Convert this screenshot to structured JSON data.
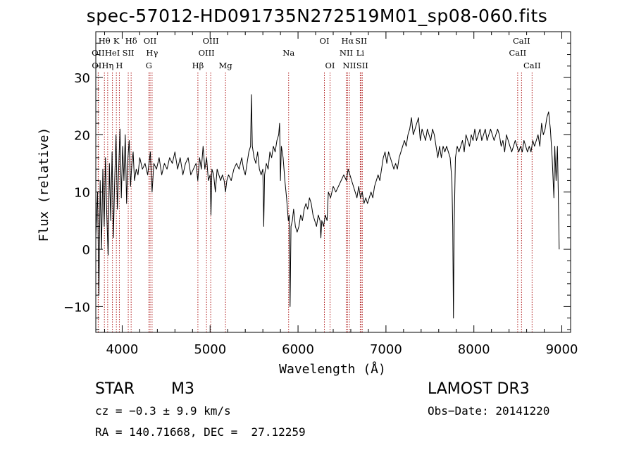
{
  "chart_data": {
    "type": "line",
    "title": "spec-57012-HD091735N272519M01_sp08-060.fits",
    "xlabel": "Wavelength (Å)",
    "ylabel": "Flux (relative)",
    "xlim": [
      3700,
      9100
    ],
    "ylim": [
      -14.5,
      38
    ],
    "x_ticks": [
      4000,
      5000,
      6000,
      7000,
      8000,
      9000
    ],
    "y_ticks": [
      -10,
      0,
      10,
      20,
      30
    ],
    "line_color": "#000000",
    "marker_color": "#b22222",
    "series": [
      {
        "name": "flux",
        "points": [
          [
            3700,
            2
          ],
          [
            3720,
            10
          ],
          [
            3735,
            -8
          ],
          [
            3750,
            12
          ],
          [
            3765,
            0
          ],
          [
            3780,
            14
          ],
          [
            3795,
            4
          ],
          [
            3810,
            16
          ],
          [
            3825,
            6
          ],
          [
            3840,
            -1
          ],
          [
            3855,
            15
          ],
          [
            3870,
            5
          ],
          [
            3885,
            17
          ],
          [
            3900,
            2
          ],
          [
            3915,
            12
          ],
          [
            3930,
            20
          ],
          [
            3945,
            7
          ],
          [
            3960,
            14
          ],
          [
            3975,
            21
          ],
          [
            3990,
            9
          ],
          [
            4005,
            18
          ],
          [
            4020,
            12
          ],
          [
            4035,
            20
          ],
          [
            4050,
            8
          ],
          [
            4065,
            16
          ],
          [
            4080,
            19
          ],
          [
            4095,
            11
          ],
          [
            4110,
            15
          ],
          [
            4125,
            17
          ],
          [
            4140,
            12
          ],
          [
            4160,
            14
          ],
          [
            4180,
            13
          ],
          [
            4200,
            16
          ],
          [
            4230,
            14
          ],
          [
            4260,
            15
          ],
          [
            4290,
            13
          ],
          [
            4320,
            17
          ],
          [
            4340,
            10
          ],
          [
            4360,
            15
          ],
          [
            4390,
            14
          ],
          [
            4420,
            16
          ],
          [
            4450,
            13
          ],
          [
            4480,
            15
          ],
          [
            4510,
            14
          ],
          [
            4540,
            16
          ],
          [
            4570,
            15
          ],
          [
            4600,
            17
          ],
          [
            4630,
            14
          ],
          [
            4660,
            16
          ],
          [
            4690,
            13
          ],
          [
            4720,
            15
          ],
          [
            4750,
            16
          ],
          [
            4780,
            13
          ],
          [
            4810,
            14
          ],
          [
            4840,
            15
          ],
          [
            4860,
            12
          ],
          [
            4880,
            16
          ],
          [
            4900,
            14
          ],
          [
            4920,
            18
          ],
          [
            4940,
            14
          ],
          [
            4960,
            16
          ],
          [
            4980,
            12
          ],
          [
            5000,
            13
          ],
          [
            5010,
            6
          ],
          [
            5020,
            14
          ],
          [
            5040,
            13
          ],
          [
            5060,
            10
          ],
          [
            5080,
            14
          ],
          [
            5100,
            13
          ],
          [
            5120,
            12
          ],
          [
            5140,
            13
          ],
          [
            5160,
            12
          ],
          [
            5175,
            10
          ],
          [
            5190,
            12
          ],
          [
            5210,
            13
          ],
          [
            5240,
            12
          ],
          [
            5270,
            14
          ],
          [
            5300,
            15
          ],
          [
            5330,
            14
          ],
          [
            5360,
            16
          ],
          [
            5380,
            14
          ],
          [
            5400,
            13
          ],
          [
            5420,
            15
          ],
          [
            5440,
            17
          ],
          [
            5460,
            18
          ],
          [
            5470,
            27
          ],
          [
            5480,
            18
          ],
          [
            5500,
            16
          ],
          [
            5520,
            15
          ],
          [
            5540,
            17
          ],
          [
            5560,
            14
          ],
          [
            5580,
            13
          ],
          [
            5600,
            14
          ],
          [
            5610,
            4
          ],
          [
            5620,
            13
          ],
          [
            5640,
            15
          ],
          [
            5660,
            14
          ],
          [
            5680,
            17
          ],
          [
            5700,
            16
          ],
          [
            5720,
            18
          ],
          [
            5740,
            17
          ],
          [
            5760,
            19
          ],
          [
            5780,
            20
          ],
          [
            5790,
            22
          ],
          [
            5800,
            12
          ],
          [
            5810,
            18
          ],
          [
            5830,
            16
          ],
          [
            5850,
            12
          ],
          [
            5870,
            9
          ],
          [
            5890,
            5
          ],
          [
            5900,
            6
          ],
          [
            5910,
            -10
          ],
          [
            5920,
            4
          ],
          [
            5935,
            5
          ],
          [
            5950,
            7
          ],
          [
            5970,
            4
          ],
          [
            5990,
            3
          ],
          [
            6010,
            4
          ],
          [
            6030,
            6
          ],
          [
            6050,
            5
          ],
          [
            6070,
            7
          ],
          [
            6090,
            8
          ],
          [
            6110,
            7
          ],
          [
            6130,
            9
          ],
          [
            6150,
            8
          ],
          [
            6170,
            6
          ],
          [
            6190,
            5
          ],
          [
            6210,
            4
          ],
          [
            6230,
            6
          ],
          [
            6250,
            5
          ],
          [
            6260,
            2
          ],
          [
            6270,
            5
          ],
          [
            6290,
            4
          ],
          [
            6310,
            6
          ],
          [
            6330,
            5
          ],
          [
            6345,
            10
          ],
          [
            6370,
            9
          ],
          [
            6400,
            11
          ],
          [
            6430,
            10
          ],
          [
            6460,
            11
          ],
          [
            6490,
            12
          ],
          [
            6520,
            13
          ],
          [
            6550,
            12
          ],
          [
            6570,
            14
          ],
          [
            6590,
            13
          ],
          [
            6610,
            12
          ],
          [
            6630,
            11
          ],
          [
            6650,
            10
          ],
          [
            6670,
            9
          ],
          [
            6690,
            11
          ],
          [
            6710,
            9
          ],
          [
            6730,
            10
          ],
          [
            6750,
            8
          ],
          [
            6770,
            9
          ],
          [
            6790,
            8
          ],
          [
            6810,
            9
          ],
          [
            6830,
            10
          ],
          [
            6850,
            9
          ],
          [
            6870,
            11
          ],
          [
            6890,
            12
          ],
          [
            6910,
            13
          ],
          [
            6930,
            12
          ],
          [
            6950,
            14
          ],
          [
            6970,
            16
          ],
          [
            6990,
            17
          ],
          [
            7010,
            15
          ],
          [
            7030,
            17
          ],
          [
            7050,
            16
          ],
          [
            7070,
            15
          ],
          [
            7090,
            14
          ],
          [
            7110,
            15
          ],
          [
            7130,
            14
          ],
          [
            7150,
            16
          ],
          [
            7170,
            17
          ],
          [
            7190,
            18
          ],
          [
            7210,
            19
          ],
          [
            7230,
            18
          ],
          [
            7250,
            20
          ],
          [
            7270,
            21
          ],
          [
            7290,
            23
          ],
          [
            7310,
            20
          ],
          [
            7330,
            21
          ],
          [
            7350,
            22
          ],
          [
            7370,
            23
          ],
          [
            7390,
            19
          ],
          [
            7410,
            21
          ],
          [
            7430,
            20
          ],
          [
            7450,
            19
          ],
          [
            7470,
            21
          ],
          [
            7490,
            20
          ],
          [
            7510,
            19
          ],
          [
            7530,
            21
          ],
          [
            7550,
            20
          ],
          [
            7570,
            18
          ],
          [
            7590,
            16
          ],
          [
            7610,
            18
          ],
          [
            7630,
            16
          ],
          [
            7650,
            18
          ],
          [
            7670,
            17
          ],
          [
            7690,
            18
          ],
          [
            7710,
            17
          ],
          [
            7730,
            16
          ],
          [
            7750,
            12
          ],
          [
            7760,
            4
          ],
          [
            7768,
            -12
          ],
          [
            7776,
            4
          ],
          [
            7790,
            16
          ],
          [
            7810,
            18
          ],
          [
            7830,
            17
          ],
          [
            7850,
            18
          ],
          [
            7870,
            19
          ],
          [
            7890,
            17
          ],
          [
            7910,
            20
          ],
          [
            7930,
            19
          ],
          [
            7950,
            18
          ],
          [
            7970,
            20
          ],
          [
            7990,
            19
          ],
          [
            8010,
            21
          ],
          [
            8030,
            19
          ],
          [
            8050,
            20
          ],
          [
            8070,
            21
          ],
          [
            8090,
            19
          ],
          [
            8110,
            20
          ],
          [
            8130,
            21
          ],
          [
            8150,
            19
          ],
          [
            8170,
            20
          ],
          [
            8190,
            21
          ],
          [
            8210,
            20
          ],
          [
            8230,
            19
          ],
          [
            8250,
            20
          ],
          [
            8270,
            21
          ],
          [
            8290,
            20
          ],
          [
            8310,
            18
          ],
          [
            8330,
            19
          ],
          [
            8350,
            17
          ],
          [
            8370,
            20
          ],
          [
            8390,
            19
          ],
          [
            8410,
            18
          ],
          [
            8430,
            17
          ],
          [
            8450,
            18
          ],
          [
            8470,
            19
          ],
          [
            8490,
            18
          ],
          [
            8510,
            17
          ],
          [
            8530,
            18
          ],
          [
            8550,
            17
          ],
          [
            8570,
            19
          ],
          [
            8590,
            18
          ],
          [
            8610,
            17
          ],
          [
            8630,
            18
          ],
          [
            8650,
            17
          ],
          [
            8670,
            19
          ],
          [
            8690,
            18
          ],
          [
            8710,
            19
          ],
          [
            8730,
            20
          ],
          [
            8750,
            18
          ],
          [
            8770,
            22
          ],
          [
            8790,
            20
          ],
          [
            8810,
            21
          ],
          [
            8830,
            23
          ],
          [
            8850,
            24
          ],
          [
            8870,
            21
          ],
          [
            8890,
            16
          ],
          [
            8910,
            9
          ],
          [
            8920,
            18
          ],
          [
            8935,
            12
          ],
          [
            8950,
            18
          ],
          [
            8960,
            10
          ],
          [
            8970,
            0
          ]
        ]
      }
    ],
    "line_markers": [
      {
        "name": "Hθ",
        "x": 3798,
        "row": 0
      },
      {
        "name": "OII",
        "x": 3727,
        "row": 1
      },
      {
        "name": "OII",
        "x": 3729,
        "row": 2
      },
      {
        "name": "HeI",
        "x": 3889,
        "row": 1
      },
      {
        "name": "Hη",
        "x": 3835,
        "row": 2
      },
      {
        "name": "K",
        "x": 3934,
        "row": 0
      },
      {
        "name": "SII",
        "x": 4069,
        "row": 1
      },
      {
        "name": "H",
        "x": 3968,
        "row": 2
      },
      {
        "name": "Hδ",
        "x": 4102,
        "row": 0
      },
      {
        "name": "OII",
        "x": 4317,
        "row": 0
      },
      {
        "name": "Hγ",
        "x": 4340,
        "row": 1
      },
      {
        "name": "G",
        "x": 4304,
        "row": 2
      },
      {
        "name": "OIII",
        "x": 5007,
        "row": 0
      },
      {
        "name": "OIII",
        "x": 4959,
        "row": 1
      },
      {
        "name": "Hβ",
        "x": 4861,
        "row": 2
      },
      {
        "name": "Mg",
        "x": 5175,
        "row": 2
      },
      {
        "name": "Na",
        "x": 5893,
        "row": 1
      },
      {
        "name": "OI",
        "x": 6300,
        "row": 0
      },
      {
        "name": "OI",
        "x": 6364,
        "row": 2
      },
      {
        "name": "Hα",
        "x": 6563,
        "row": 0
      },
      {
        "name": "SII",
        "x": 6717,
        "row": 0
      },
      {
        "name": "NII",
        "x": 6548,
        "row": 1
      },
      {
        "name": "Li",
        "x": 6708,
        "row": 1
      },
      {
        "name": "NII",
        "x": 6584,
        "row": 2
      },
      {
        "name": "SII",
        "x": 6731,
        "row": 2
      },
      {
        "name": "CaII",
        "x": 8542,
        "row": 0
      },
      {
        "name": "CaII",
        "x": 8498,
        "row": 1
      },
      {
        "name": "CaII",
        "x": 8662,
        "row": 2
      }
    ]
  },
  "info": {
    "object_class": "STAR",
    "subclass": "M3",
    "survey": "LAMOST DR3",
    "redshift": "cz = −0.3 ± 9.9 km/s",
    "obs_date": "Obs−Date: 20141220",
    "coords": "RA = 140.71668, DEC =  27.12259"
  }
}
